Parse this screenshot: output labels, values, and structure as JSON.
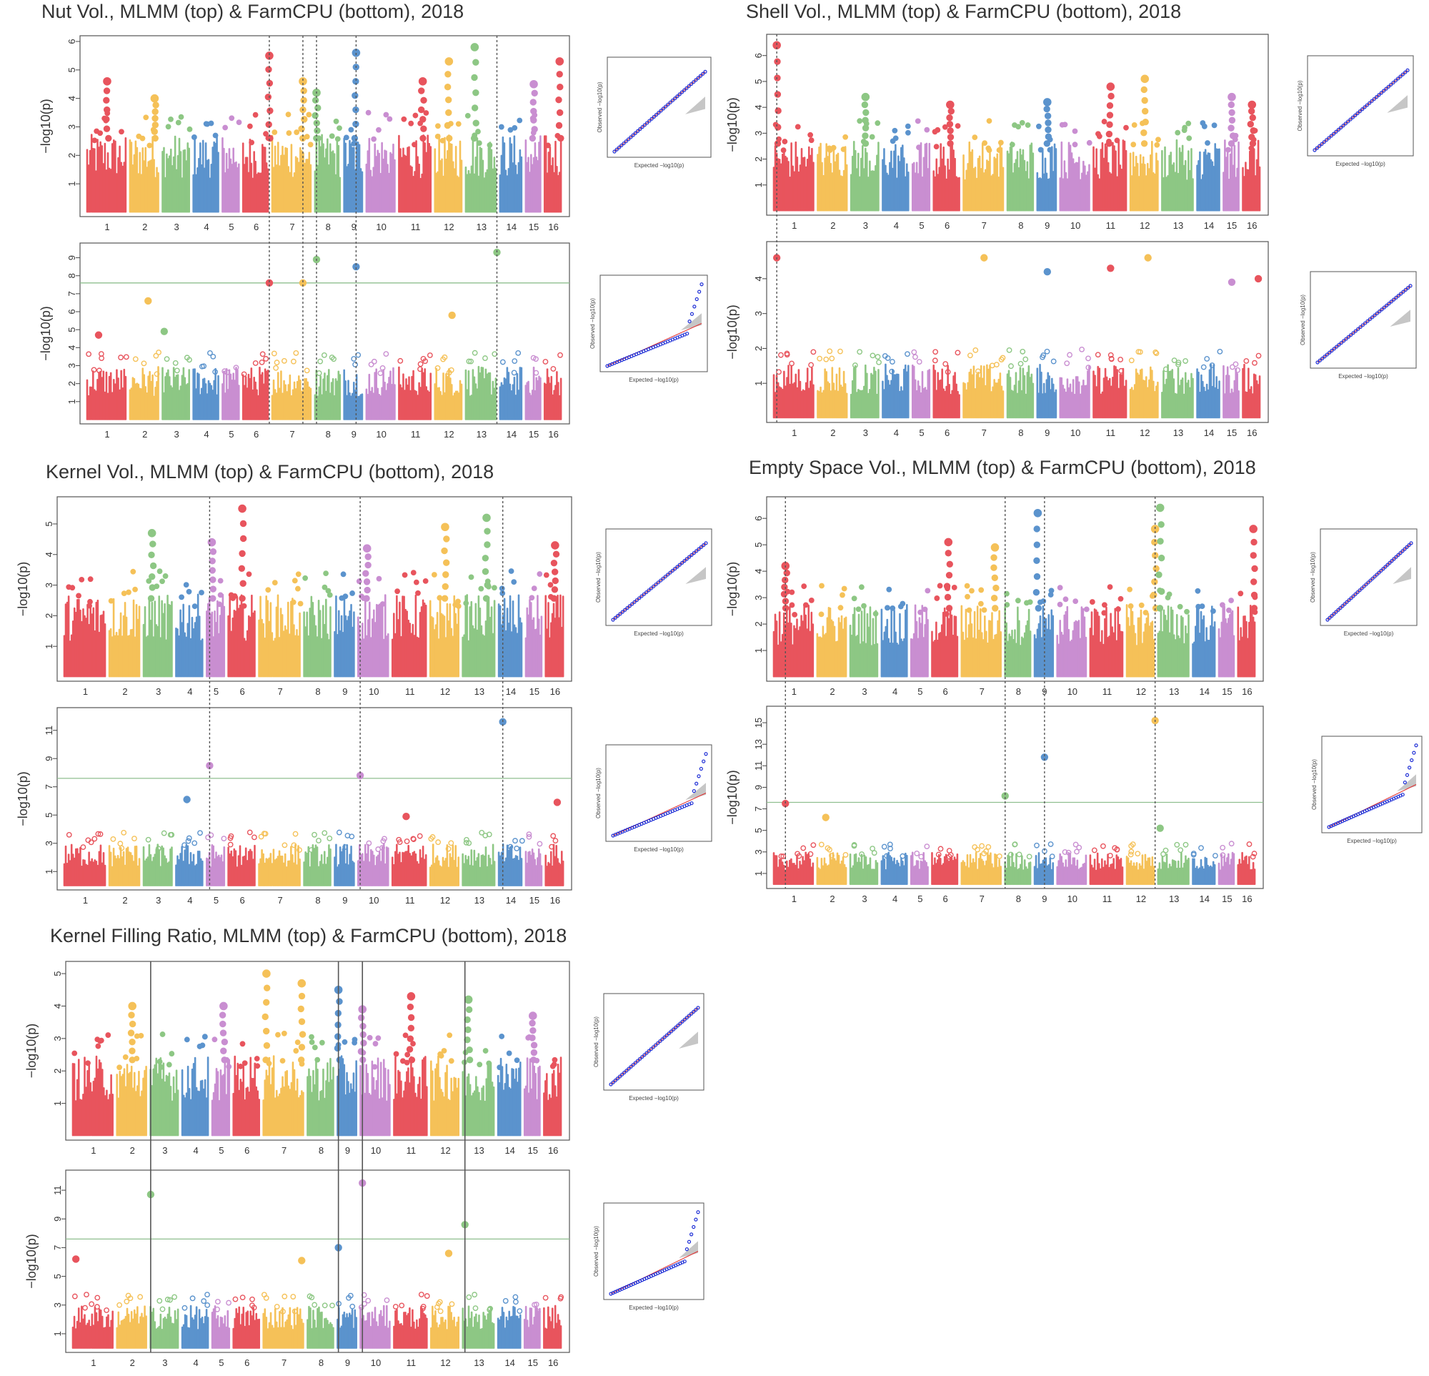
{
  "figure": {
    "chart_data": [
      {
        "type": "scatter",
        "title": "Nut Vol., MLMM (top) & FarmCPU (bottom), 2018",
        "chromosomes": [
          "1",
          "2",
          "3",
          "4",
          "5",
          "6",
          "7",
          "8",
          "9",
          "10",
          "11",
          "12",
          "13",
          "14",
          "15",
          "16"
        ],
        "ylabel": "−log10(p)",
        "qq_xlabel": "Expected −log10(p)",
        "qq_ylabel": "Observed −log10(p)",
        "series": [
          {
            "name": "MLMM (top)",
            "ylim": [
              0,
              6
            ],
            "yticks": [
              1,
              2,
              3,
              4,
              5,
              6
            ],
            "threshold": null,
            "peaks": [
              {
                "chr": 1,
                "pos": 0.5,
                "value": 4.6
              },
              {
                "chr": 2,
                "pos": 0.8,
                "value": 4.0
              },
              {
                "chr": 6,
                "pos": 0.95,
                "value": 5.5
              },
              {
                "chr": 7,
                "pos": 0.75,
                "value": 4.6
              },
              {
                "chr": 8,
                "pos": 0.1,
                "value": 4.2
              },
              {
                "chr": 9,
                "pos": 0.6,
                "value": 5.6
              },
              {
                "chr": 11,
                "pos": 0.7,
                "value": 4.6
              },
              {
                "chr": 12,
                "pos": 0.5,
                "value": 5.3
              },
              {
                "chr": 13,
                "pos": 0.3,
                "value": 5.8
              },
              {
                "chr": 15,
                "pos": 0.5,
                "value": 4.5
              },
              {
                "chr": 16,
                "pos": 0.8,
                "value": 5.3
              }
            ],
            "qq_max": 6
          },
          {
            "name": "FarmCPU (bottom)",
            "ylim": [
              0,
              9.5
            ],
            "yticks": [
              1,
              2,
              3,
              4,
              5,
              6,
              7,
              8,
              9
            ],
            "threshold": 7.6,
            "peaks": [
              {
                "chr": 1,
                "pos": 0.3,
                "value": 4.7
              },
              {
                "chr": 2,
                "pos": 0.6,
                "value": 6.6
              },
              {
                "chr": 3,
                "pos": 0.1,
                "value": 4.9
              },
              {
                "chr": 6,
                "pos": 0.95,
                "value": 7.6
              },
              {
                "chr": 7,
                "pos": 0.75,
                "value": 7.6
              },
              {
                "chr": 8,
                "pos": 0.1,
                "value": 8.9
              },
              {
                "chr": 9,
                "pos": 0.6,
                "value": 8.5
              },
              {
                "chr": 12,
                "pos": 0.6,
                "value": 5.8
              },
              {
                "chr": 13,
                "pos": 0.95,
                "value": 9.3
              }
            ],
            "qq_max": 9
          }
        ],
        "lead_snps": [
          {
            "chr": 6,
            "pos": 0.95
          },
          {
            "chr": 7,
            "pos": 0.75
          },
          {
            "chr": 8,
            "pos": 0.1
          },
          {
            "chr": 9,
            "pos": 0.6
          },
          {
            "chr": 13,
            "pos": 0.95
          }
        ],
        "line_style": "dotted"
      },
      {
        "type": "scatter",
        "title": "Shell Vol., MLMM (top) & FarmCPU (bottom), 2018",
        "chromosomes": [
          "1",
          "2",
          "3",
          "4",
          "5",
          "6",
          "7",
          "8",
          "9",
          "10",
          "11",
          "12",
          "13",
          "14",
          "15",
          "16"
        ],
        "ylabel": "−log10(p)",
        "qq_xlabel": "Expected −log10(p)",
        "qq_ylabel": "Observed −log10(p)",
        "series": [
          {
            "name": "MLMM (top)",
            "ylim": [
              0,
              6.6
            ],
            "yticks": [
              1,
              2,
              3,
              4,
              5,
              6
            ],
            "threshold": null,
            "peaks": [
              {
                "chr": 1,
                "pos": 0.1,
                "value": 6.4
              },
              {
                "chr": 3,
                "pos": 0.5,
                "value": 4.4
              },
              {
                "chr": 6,
                "pos": 0.6,
                "value": 4.1
              },
              {
                "chr": 9,
                "pos": 0.5,
                "value": 4.2
              },
              {
                "chr": 11,
                "pos": 0.5,
                "value": 4.8
              },
              {
                "chr": 12,
                "pos": 0.5,
                "value": 5.1
              },
              {
                "chr": 15,
                "pos": 0.5,
                "value": 4.4
              },
              {
                "chr": 16,
                "pos": 0.5,
                "value": 4.1
              }
            ],
            "qq_max": 6
          },
          {
            "name": "FarmCPU (bottom)",
            "ylim": [
              0,
              4.9
            ],
            "yticks": [
              1,
              2,
              3,
              4
            ],
            "threshold": null,
            "peaks": [
              {
                "chr": 1,
                "pos": 0.1,
                "value": 4.6
              },
              {
                "chr": 7,
                "pos": 0.5,
                "value": 4.6
              },
              {
                "chr": 9,
                "pos": 0.5,
                "value": 4.2
              },
              {
                "chr": 11,
                "pos": 0.5,
                "value": 4.3
              },
              {
                "chr": 12,
                "pos": 0.6,
                "value": 4.6
              },
              {
                "chr": 15,
                "pos": 0.5,
                "value": 3.9
              },
              {
                "chr": 16,
                "pos": 0.8,
                "value": 4.0
              }
            ],
            "qq_max": 4.5
          }
        ],
        "lead_snps": [
          {
            "chr": 1,
            "pos": 0.1
          }
        ],
        "line_style": "dotted"
      },
      {
        "type": "scatter",
        "title": "Kernel Vol., MLMM (top) & FarmCPU (bottom), 2018",
        "chromosomes": [
          "1",
          "2",
          "3",
          "4",
          "5",
          "6",
          "7",
          "8",
          "9",
          "10",
          "11",
          "12",
          "13",
          "14",
          "15",
          "16"
        ],
        "ylabel": "−log10(p)",
        "qq_xlabel": "Expected −log10(p)",
        "qq_ylabel": "Observed −log10(p)",
        "series": [
          {
            "name": "MLMM (top)",
            "ylim": [
              0,
              5.7
            ],
            "yticks": [
              1,
              2,
              3,
              4,
              5
            ],
            "threshold": null,
            "peaks": [
              {
                "chr": 3,
                "pos": 0.3,
                "value": 4.7
              },
              {
                "chr": 5,
                "pos": 0.3,
                "value": 4.4
              },
              {
                "chr": 6,
                "pos": 0.5,
                "value": 5.5
              },
              {
                "chr": 10,
                "pos": 0.3,
                "value": 4.2
              },
              {
                "chr": 12,
                "pos": 0.5,
                "value": 4.9
              },
              {
                "chr": 13,
                "pos": 0.7,
                "value": 5.2
              },
              {
                "chr": 16,
                "pos": 0.5,
                "value": 4.3
              }
            ],
            "qq_max": 5.5
          },
          {
            "name": "FarmCPU (bottom)",
            "ylim": [
              0,
              12.2
            ],
            "yticks": [
              1,
              3,
              5,
              7,
              9,
              11
            ],
            "threshold": 7.6,
            "peaks": [
              {
                "chr": 4,
                "pos": 0.4,
                "value": 6.1
              },
              {
                "chr": 5,
                "pos": 0.2,
                "value": 8.5
              },
              {
                "chr": 10,
                "pos": 0.1,
                "value": 7.8
              },
              {
                "chr": 11,
                "pos": 0.4,
                "value": 4.9
              },
              {
                "chr": 14,
                "pos": 0.2,
                "value": 11.6
              },
              {
                "chr": 16,
                "pos": 0.6,
                "value": 5.9
              }
            ],
            "qq_max": 12
          }
        ],
        "lead_snps": [
          {
            "chr": 5,
            "pos": 0.2
          },
          {
            "chr": 10,
            "pos": 0.1
          },
          {
            "chr": 14,
            "pos": 0.2
          }
        ],
        "line_style": "mixed"
      },
      {
        "type": "scatter",
        "title": "Empty Space Vol., MLMM (top) & FarmCPU (bottom), 2018",
        "chromosomes": [
          "1",
          "2",
          "3",
          "4",
          "5",
          "6",
          "7",
          "8",
          "9",
          "10",
          "11",
          "12",
          "13",
          "14",
          "15",
          "16"
        ],
        "ylabel": "−log10(p)",
        "qq_xlabel": "Expected −log10(p)",
        "qq_ylabel": "Observed −log10(p)",
        "series": [
          {
            "name": "MLMM (top)",
            "ylim": [
              0,
              6.6
            ],
            "yticks": [
              1,
              2,
              3,
              4,
              5,
              6
            ],
            "threshold": null,
            "peaks": [
              {
                "chr": 1,
                "pos": 0.3,
                "value": 4.2
              },
              {
                "chr": 6,
                "pos": 0.6,
                "value": 5.1
              },
              {
                "chr": 7,
                "pos": 0.8,
                "value": 4.9
              },
              {
                "chr": 9,
                "pos": 0.2,
                "value": 6.2
              },
              {
                "chr": 12,
                "pos": 0.95,
                "value": 5.6
              },
              {
                "chr": 13,
                "pos": 0.1,
                "value": 6.4
              },
              {
                "chr": 16,
                "pos": 0.8,
                "value": 5.6
              }
            ],
            "qq_max": 6
          },
          {
            "name": "FarmCPU (bottom)",
            "ylim": [
              0,
              16
            ],
            "yticks": [
              1,
              3,
              5,
              7,
              9,
              11,
              13,
              15
            ],
            "threshold": 7.6,
            "peaks": [
              {
                "chr": 1,
                "pos": 0.3,
                "value": 7.5
              },
              {
                "chr": 2,
                "pos": 0.3,
                "value": 6.2
              },
              {
                "chr": 8,
                "pos": 0.05,
                "value": 8.2
              },
              {
                "chr": 9,
                "pos": 0.5,
                "value": 11.8
              },
              {
                "chr": 12,
                "pos": 0.95,
                "value": 15.2
              },
              {
                "chr": 13,
                "pos": 0.1,
                "value": 5.2
              }
            ],
            "qq_max": 15
          }
        ],
        "lead_snps": [
          {
            "chr": 1,
            "pos": 0.3
          },
          {
            "chr": 8,
            "pos": 0.05
          },
          {
            "chr": 9,
            "pos": 0.5
          },
          {
            "chr": 12,
            "pos": 0.95
          }
        ],
        "line_style": "dotted"
      },
      {
        "type": "scatter",
        "title": "Kernel Filling Ratio, MLMM (top) & FarmCPU (bottom), 2018",
        "chromosomes": [
          "1",
          "2",
          "3",
          "4",
          "5",
          "6",
          "7",
          "8",
          "9",
          "10",
          "11",
          "12",
          "13",
          "14",
          "15",
          "16"
        ],
        "ylabel": "−log10(p)",
        "qq_xlabel": "Expected −log10(p)",
        "qq_ylabel": "Observed −log10(p)",
        "series": [
          {
            "name": "MLMM (top)",
            "ylim": [
              0,
              5.2
            ],
            "yticks": [
              1,
              2,
              3,
              4,
              5
            ],
            "threshold": null,
            "peaks": [
              {
                "chr": 2,
                "pos": 0.5,
                "value": 4.0
              },
              {
                "chr": 5,
                "pos": 0.6,
                "value": 4.0
              },
              {
                "chr": 7,
                "pos": 0.1,
                "value": 5.0
              },
              {
                "chr": 7,
                "pos": 0.9,
                "value": 4.7
              },
              {
                "chr": 9,
                "pos": 0.1,
                "value": 4.5
              },
              {
                "chr": 10,
                "pos": 0.1,
                "value": 3.9
              },
              {
                "chr": 11,
                "pos": 0.5,
                "value": 4.3
              },
              {
                "chr": 13,
                "pos": 0.2,
                "value": 4.2
              },
              {
                "chr": 15,
                "pos": 0.5,
                "value": 3.7
              }
            ],
            "qq_max": 5
          },
          {
            "name": "FarmCPU (bottom)",
            "ylim": [
              0,
              12
            ],
            "yticks": [
              1,
              3,
              5,
              7,
              9,
              11
            ],
            "threshold": 7.6,
            "peaks": [
              {
                "chr": 1,
                "pos": 0.1,
                "value": 6.2
              },
              {
                "chr": 3,
                "pos": 0.05,
                "value": 10.7
              },
              {
                "chr": 7,
                "pos": 0.9,
                "value": 6.1
              },
              {
                "chr": 9,
                "pos": 0.1,
                "value": 7.0
              },
              {
                "chr": 10,
                "pos": 0.1,
                "value": 11.5
              },
              {
                "chr": 12,
                "pos": 0.6,
                "value": 6.6
              },
              {
                "chr": 13,
                "pos": 0.1,
                "value": 8.6
              }
            ],
            "qq_max": 11
          }
        ],
        "lead_snps": [
          {
            "chr": 3,
            "pos": 0.05
          },
          {
            "chr": 9,
            "pos": 0.1
          },
          {
            "chr": 10,
            "pos": 0.1
          },
          {
            "chr": 13,
            "pos": 0.1
          }
        ],
        "line_style": "solid"
      }
    ],
    "colors": {
      "chr_palette": [
        "#e8545d",
        "#f5c158",
        "#8dc784",
        "#5b93cd",
        "#c98ed1"
      ],
      "threshold_line": "#8fbf8f",
      "qq_points": "#1f2fd6",
      "qq_expected_line": "#e03030",
      "qq_ci_band": "#b8b8b8"
    }
  }
}
